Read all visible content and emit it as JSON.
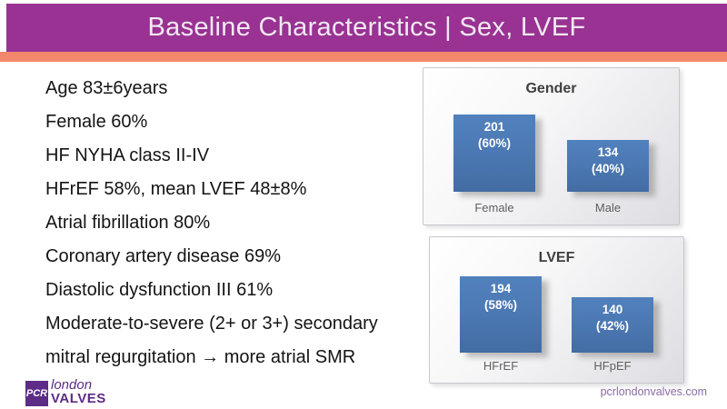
{
  "header": {
    "title": "Baseline Characteristics | Sex, LVEF"
  },
  "bullet_lines": [
    "Age 83±6years",
    "Female 60%",
    "HF NYHA class II-IV",
    "HFrEF 58%, mean LVEF 48±8%",
    "Atrial fibrillation 80%",
    "Coronary artery disease 69%",
    "Diastolic dysfunction III 61%",
    "Moderate-to-severe (2+ or 3+) secondary",
    "mitral regurgitation → more atrial SMR"
  ],
  "chart_data": [
    {
      "type": "bar",
      "title": "Gender",
      "categories": [
        "Female",
        "Male"
      ],
      "values": [
        201,
        134
      ],
      "bar_labels": [
        [
          "201",
          "(60%)"
        ],
        [
          "134",
          "(40%)"
        ]
      ],
      "ylim": [
        0,
        220
      ],
      "grid": false,
      "legend": "none",
      "bar_color": "#4c79b4"
    },
    {
      "type": "bar",
      "title": "LVEF",
      "categories": [
        "HFrEF",
        "HFpEF"
      ],
      "values": [
        194,
        140
      ],
      "bar_labels": [
        [
          "194",
          "(58%)"
        ],
        [
          "140",
          "(42%)"
        ]
      ],
      "ylim": [
        0,
        220
      ],
      "grid": false,
      "legend": "none",
      "bar_color": "#4c79b4"
    }
  ],
  "logo": {
    "pcr": "PCR",
    "london": "london",
    "valves": "VALVES"
  },
  "footer": {
    "url": "pcrlondonvalves.com"
  },
  "colors": {
    "header_purple": "#993293",
    "accent_orange": "#f3876b",
    "bar_blue": "#4c79b4",
    "logo_purple": "#5c2c87",
    "footer_text_purple": "#8a6ba4",
    "chart_title_gray": "#3f3f3f",
    "category_label_gray": "#5f5f5f"
  }
}
